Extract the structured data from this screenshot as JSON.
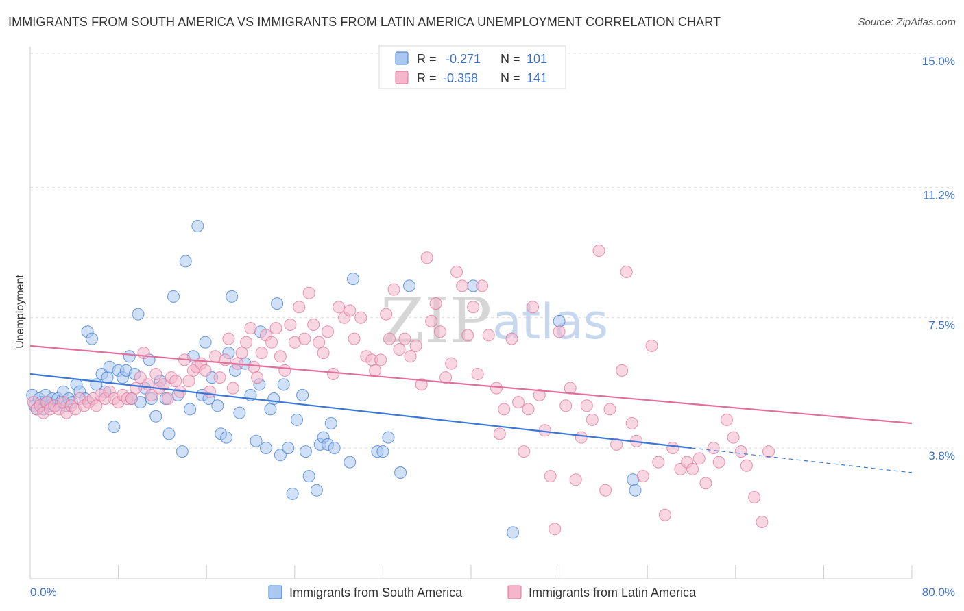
{
  "title": "IMMIGRANTS FROM SOUTH AMERICA VS IMMIGRANTS FROM LATIN AMERICA UNEMPLOYMENT CORRELATION CHART",
  "source": "Source: ZipAtlas.com",
  "watermark": {
    "part1": "ZIP",
    "part2": "atlas"
  },
  "colors": {
    "blue": "#3a78d8",
    "blue_fill": "#a9c7ef",
    "pink": "#e0709a",
    "pink_fill": "#f4b6cb",
    "tick": "#3a6fc8"
  },
  "legend": {
    "r_label": "R =",
    "n_label": "N =",
    "rows": [
      {
        "r": "-0.271",
        "n": "101"
      },
      {
        "r": "-0.358",
        "n": "141"
      }
    ]
  },
  "chart_data": {
    "type": "scatter",
    "title": "IMMIGRANTS FROM SOUTH AMERICA VS IMMIGRANTS FROM LATIN AMERICA UNEMPLOYMENT CORRELATION CHART",
    "xlabel": "",
    "ylabel": "Unemployment",
    "xlim": [
      0,
      80
    ],
    "ylim": [
      0.8,
      15.5
    ],
    "x_tick_labels": {
      "min": "0.0%",
      "max": "80.0%"
    },
    "y_ticks": [
      {
        "value": 3.8,
        "label": "3.8%"
      },
      {
        "value": 7.5,
        "label": "7.5%"
      },
      {
        "value": 11.2,
        "label": "11.2%"
      },
      {
        "value": 15.0,
        "label": "15.0%"
      }
    ],
    "grid": true,
    "legend_position": "top-center",
    "series": [
      {
        "name": "Immigrants from South America",
        "color": "#3a78d8",
        "trend": {
          "x0": 0,
          "y0": 5.9,
          "x1": 60,
          "y1": 3.8,
          "dash_to_x": 80,
          "dash_to_y": 3.1
        },
        "points": [
          [
            0.2,
            5.3
          ],
          [
            0.4,
            5.0
          ],
          [
            0.6,
            4.9
          ],
          [
            0.8,
            5.2
          ],
          [
            1.0,
            5.1
          ],
          [
            1.2,
            4.9
          ],
          [
            1.4,
            5.3
          ],
          [
            1.6,
            5.1
          ],
          [
            1.8,
            5.0
          ],
          [
            2.0,
            5.2
          ],
          [
            2.3,
            5.0
          ],
          [
            2.5,
            5.2
          ],
          [
            2.8,
            5.1
          ],
          [
            3.0,
            5.4
          ],
          [
            3.3,
            5.0
          ],
          [
            3.5,
            5.2
          ],
          [
            3.8,
            5.1
          ],
          [
            4.2,
            5.6
          ],
          [
            4.5,
            5.4
          ],
          [
            5.0,
            5.2
          ],
          [
            5.2,
            7.1
          ],
          [
            5.6,
            6.9
          ],
          [
            6.0,
            5.6
          ],
          [
            6.5,
            5.9
          ],
          [
            6.8,
            5.4
          ],
          [
            7.0,
            5.8
          ],
          [
            7.2,
            6.1
          ],
          [
            7.6,
            4.4
          ],
          [
            8.0,
            6.0
          ],
          [
            8.4,
            5.8
          ],
          [
            8.7,
            6.0
          ],
          [
            9.0,
            6.4
          ],
          [
            9.2,
            5.2
          ],
          [
            9.5,
            5.9
          ],
          [
            9.8,
            7.6
          ],
          [
            10.0,
            5.1
          ],
          [
            10.4,
            5.5
          ],
          [
            10.8,
            6.3
          ],
          [
            11.0,
            5.2
          ],
          [
            11.4,
            4.7
          ],
          [
            11.8,
            5.7
          ],
          [
            12.3,
            5.2
          ],
          [
            12.6,
            4.2
          ],
          [
            13.0,
            8.1
          ],
          [
            13.4,
            5.3
          ],
          [
            13.8,
            3.7
          ],
          [
            14.1,
            9.1
          ],
          [
            14.5,
            4.9
          ],
          [
            14.8,
            6.4
          ],
          [
            15.2,
            10.1
          ],
          [
            15.6,
            5.3
          ],
          [
            15.9,
            6.8
          ],
          [
            16.2,
            5.2
          ],
          [
            16.5,
            5.8
          ],
          [
            17.0,
            5.0
          ],
          [
            17.3,
            4.2
          ],
          [
            17.8,
            4.1
          ],
          [
            18.0,
            6.5
          ],
          [
            18.3,
            8.1
          ],
          [
            18.6,
            6.0
          ],
          [
            19.0,
            4.8
          ],
          [
            19.5,
            6.2
          ],
          [
            20.0,
            5.3
          ],
          [
            20.5,
            4.0
          ],
          [
            20.8,
            5.6
          ],
          [
            20.9,
            7.1
          ],
          [
            21.4,
            3.8
          ],
          [
            21.8,
            4.9
          ],
          [
            22.1,
            5.2
          ],
          [
            22.4,
            7.9
          ],
          [
            22.7,
            3.6
          ],
          [
            23.0,
            5.6
          ],
          [
            23.4,
            3.8
          ],
          [
            23.8,
            2.5
          ],
          [
            24.2,
            4.6
          ],
          [
            24.7,
            5.3
          ],
          [
            25.0,
            3.7
          ],
          [
            25.3,
            3.0
          ],
          [
            26.0,
            2.6
          ],
          [
            26.3,
            3.9
          ],
          [
            26.6,
            4.1
          ],
          [
            27.0,
            3.9
          ],
          [
            27.3,
            4.5
          ],
          [
            27.6,
            3.8
          ],
          [
            29.0,
            3.4
          ],
          [
            29.3,
            8.6
          ],
          [
            31.5,
            3.7
          ],
          [
            32.0,
            3.7
          ],
          [
            32.5,
            4.1
          ],
          [
            33.6,
            3.1
          ],
          [
            34.4,
            8.4
          ],
          [
            40.2,
            8.4
          ],
          [
            43.8,
            1.4
          ],
          [
            48.0,
            7.4
          ],
          [
            54.7,
            2.9
          ],
          [
            54.9,
            2.6
          ]
        ]
      },
      {
        "name": "Immigrants from Latin America",
        "color": "#e0709a",
        "trend": {
          "x0": 0,
          "y0": 6.7,
          "x1": 80,
          "y1": 4.5
        },
        "points": [
          [
            0.3,
            5.1
          ],
          [
            0.6,
            4.9
          ],
          [
            0.9,
            5.0
          ],
          [
            1.2,
            4.8
          ],
          [
            1.5,
            5.1
          ],
          [
            1.8,
            4.9
          ],
          [
            2.2,
            5.0
          ],
          [
            2.6,
            4.9
          ],
          [
            3.0,
            5.1
          ],
          [
            3.3,
            4.8
          ],
          [
            3.7,
            5.0
          ],
          [
            4.1,
            4.9
          ],
          [
            4.5,
            5.2
          ],
          [
            4.9,
            5.0
          ],
          [
            5.3,
            5.1
          ],
          [
            5.7,
            5.2
          ],
          [
            6.0,
            5.0
          ],
          [
            6.4,
            5.3
          ],
          [
            6.8,
            5.2
          ],
          [
            7.2,
            5.4
          ],
          [
            7.6,
            5.2
          ],
          [
            8.0,
            5.1
          ],
          [
            8.4,
            5.3
          ],
          [
            8.8,
            5.2
          ],
          [
            9.2,
            5.2
          ],
          [
            9.6,
            5.5
          ],
          [
            10.0,
            5.8
          ],
          [
            10.3,
            6.5
          ],
          [
            10.7,
            5.6
          ],
          [
            11.0,
            5.3
          ],
          [
            11.4,
            5.9
          ],
          [
            11.7,
            5.5
          ],
          [
            12.1,
            5.6
          ],
          [
            12.5,
            5.2
          ],
          [
            12.8,
            5.8
          ],
          [
            13.2,
            5.7
          ],
          [
            13.6,
            5.4
          ],
          [
            14.0,
            6.3
          ],
          [
            14.4,
            5.7
          ],
          [
            14.8,
            6.0
          ],
          [
            15.1,
            6.1
          ],
          [
            15.5,
            6.2
          ],
          [
            15.9,
            6.0
          ],
          [
            16.3,
            5.4
          ],
          [
            16.8,
            6.4
          ],
          [
            17.2,
            5.8
          ],
          [
            17.7,
            6.3
          ],
          [
            18.0,
            6.9
          ],
          [
            18.4,
            5.5
          ],
          [
            18.8,
            6.2
          ],
          [
            19.2,
            6.5
          ],
          [
            19.6,
            6.8
          ],
          [
            20.0,
            7.2
          ],
          [
            20.3,
            6.1
          ],
          [
            20.6,
            5.8
          ],
          [
            21.0,
            6.5
          ],
          [
            21.4,
            7.0
          ],
          [
            21.9,
            6.8
          ],
          [
            22.3,
            7.2
          ],
          [
            22.7,
            6.4
          ],
          [
            23.1,
            6.0
          ],
          [
            23.6,
            7.3
          ],
          [
            24.0,
            6.8
          ],
          [
            24.4,
            7.8
          ],
          [
            24.9,
            6.9
          ],
          [
            25.3,
            8.2
          ],
          [
            25.7,
            7.3
          ],
          [
            26.2,
            6.8
          ],
          [
            26.6,
            6.5
          ],
          [
            27.0,
            7.1
          ],
          [
            27.5,
            5.9
          ],
          [
            28.0,
            7.8
          ],
          [
            28.5,
            7.5
          ],
          [
            29.0,
            7.7
          ],
          [
            29.4,
            6.9
          ],
          [
            30.0,
            7.5
          ],
          [
            30.5,
            6.4
          ],
          [
            31.0,
            6.3
          ],
          [
            31.3,
            6.0
          ],
          [
            31.8,
            6.3
          ],
          [
            32.3,
            7.6
          ],
          [
            32.6,
            6.9
          ],
          [
            33.0,
            8.3
          ],
          [
            33.5,
            6.6
          ],
          [
            34.0,
            6.9
          ],
          [
            34.5,
            6.4
          ],
          [
            35.0,
            6.7
          ],
          [
            35.5,
            5.6
          ],
          [
            36.0,
            9.2
          ],
          [
            36.4,
            7.4
          ],
          [
            36.8,
            7.9
          ],
          [
            37.2,
            7.1
          ],
          [
            37.7,
            5.8
          ],
          [
            38.2,
            6.2
          ],
          [
            38.7,
            8.8
          ],
          [
            39.2,
            8.4
          ],
          [
            39.7,
            7.0
          ],
          [
            40.2,
            7.8
          ],
          [
            40.6,
            5.9
          ],
          [
            41.0,
            8.4
          ],
          [
            41.6,
            7.0
          ],
          [
            42.3,
            5.5
          ],
          [
            42.6,
            4.2
          ],
          [
            43.0,
            4.9
          ],
          [
            43.7,
            6.9
          ],
          [
            44.3,
            5.1
          ],
          [
            44.8,
            3.7
          ],
          [
            45.2,
            4.9
          ],
          [
            45.6,
            7.8
          ],
          [
            46.2,
            5.3
          ],
          [
            46.7,
            4.3
          ],
          [
            47.2,
            3.0
          ],
          [
            47.6,
            1.5
          ],
          [
            48.0,
            7.1
          ],
          [
            48.6,
            5.0
          ],
          [
            49.0,
            5.5
          ],
          [
            49.5,
            2.9
          ],
          [
            50.0,
            4.1
          ],
          [
            50.5,
            5.0
          ],
          [
            51.0,
            4.6
          ],
          [
            51.6,
            9.4
          ],
          [
            52.2,
            2.6
          ],
          [
            52.6,
            4.9
          ],
          [
            53.2,
            3.9
          ],
          [
            53.7,
            6.0
          ],
          [
            54.1,
            8.8
          ],
          [
            54.6,
            4.5
          ],
          [
            55.0,
            4.0
          ],
          [
            55.6,
            3.0
          ],
          [
            56.4,
            6.7
          ],
          [
            57.0,
            3.4
          ],
          [
            57.6,
            1.9
          ],
          [
            58.3,
            3.8
          ],
          [
            59.0,
            3.2
          ],
          [
            59.6,
            3.4
          ],
          [
            60.1,
            3.2
          ],
          [
            60.7,
            3.5
          ],
          [
            61.3,
            2.8
          ],
          [
            62.0,
            3.8
          ],
          [
            62.5,
            3.4
          ],
          [
            63.2,
            4.6
          ],
          [
            63.8,
            4.1
          ],
          [
            64.5,
            3.7
          ],
          [
            65.0,
            3.3
          ],
          [
            65.7,
            2.4
          ],
          [
            66.4,
            1.7
          ],
          [
            67.0,
            3.7
          ]
        ]
      }
    ]
  },
  "bottom_legend": [
    {
      "label": "Immigrants from South America"
    },
    {
      "label": "Immigrants from Latin America"
    }
  ]
}
